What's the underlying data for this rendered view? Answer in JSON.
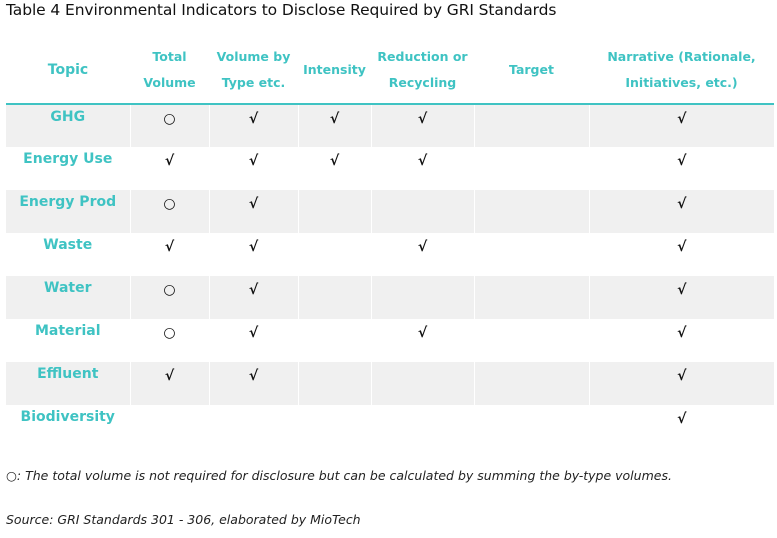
{
  "title": "Table 4 Environmental Indicators to Disclose Required by GRI Standards",
  "columns": [
    "Topic",
    "Total\nVolume",
    "Volume by\nType etc.",
    "Intensity",
    "Reduction or\nRecycling",
    "Target",
    "Narrative (Rationale,\nInitiatives, etc.)"
  ],
  "rows": [
    {
      "topic": "GHG",
      "marks": [
        "○",
        "√",
        "√",
        "√",
        "",
        "√"
      ]
    },
    {
      "topic": "Energy Use",
      "marks": [
        "√",
        "√",
        "√",
        "√",
        "",
        "√"
      ]
    },
    {
      "topic": "Energy Prod",
      "marks": [
        "○",
        "√",
        "",
        "",
        "",
        "√"
      ]
    },
    {
      "topic": "Waste",
      "marks": [
        "√",
        "√",
        "",
        "√",
        "",
        "√"
      ]
    },
    {
      "topic": "Water",
      "marks": [
        "○",
        "√",
        "",
        "",
        "",
        "√"
      ]
    },
    {
      "topic": "Material",
      "marks": [
        "○",
        "√",
        "",
        "√",
        "",
        "√"
      ]
    },
    {
      "topic": "Effluent",
      "marks": [
        "√",
        "√",
        "",
        "",
        "",
        "√"
      ]
    },
    {
      "topic": "Biodiversity",
      "marks": [
        "",
        "",
        "",
        "",
        "",
        "√"
      ]
    }
  ],
  "footnote": "○: The total volume is not required for disclosure but can be calculated by summing the by-type volumes.",
  "source": "Source: GRI Standards 301 - 306, elaborated by MioTech"
}
